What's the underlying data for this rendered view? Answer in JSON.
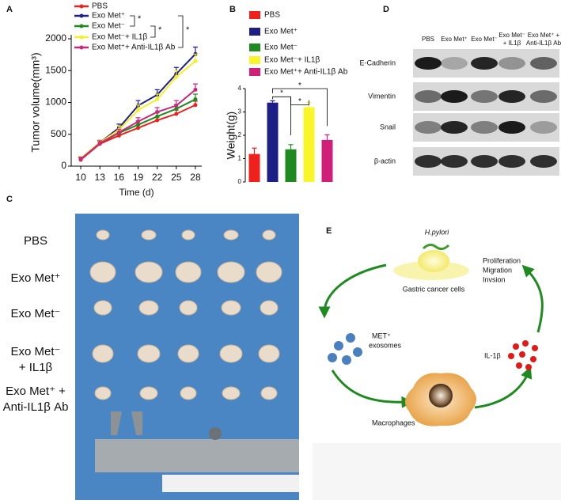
{
  "chart_data": [
    {
      "type": "line",
      "panel": "A",
      "x_label": "Time (d)",
      "y_label": "Tumor volume(mm³)",
      "x": [
        10,
        13,
        16,
        19,
        22,
        25,
        28
      ],
      "xlim": [
        8.5,
        29
      ],
      "xticks": [
        10,
        13,
        16,
        19,
        22,
        25,
        28
      ],
      "ylim": [
        0,
        2000
      ],
      "yticks": [
        0,
        500,
        1000,
        1500,
        2000
      ],
      "series": [
        {
          "name": "PBS",
          "color": "#e8231f",
          "values": [
            100,
            350,
            480,
            600,
            720,
            820,
            960
          ],
          "errors": [
            30,
            40,
            40,
            50,
            50,
            60,
            60
          ]
        },
        {
          "name": "Exo Met⁺",
          "color": "#1c1f86",
          "values": [
            120,
            370,
            600,
            950,
            1120,
            1450,
            1760
          ],
          "errors": [
            30,
            40,
            60,
            80,
            80,
            100,
            110
          ]
        },
        {
          "name": "Exo Met⁻",
          "color": "#1f8a1f",
          "values": [
            110,
            360,
            520,
            650,
            780,
            900,
            1050
          ],
          "errors": [
            30,
            40,
            50,
            60,
            60,
            70,
            80
          ]
        },
        {
          "name": "Exo Met⁻+ IL1β",
          "color": "#f5ee2a",
          "values": [
            120,
            370,
            570,
            880,
            1050,
            1400,
            1650
          ],
          "errors": [
            30,
            40,
            60,
            80,
            80,
            100,
            110
          ]
        },
        {
          "name": "Exo Met⁺+ Anti-IL1β Ab",
          "color": "#c8287a",
          "values": [
            110,
            360,
            530,
            700,
            850,
            950,
            1200
          ],
          "errors": [
            30,
            40,
            50,
            60,
            70,
            80,
            90
          ]
        }
      ],
      "annotations": [
        "*",
        "*",
        "*"
      ]
    },
    {
      "type": "bar",
      "panel": "B",
      "y_label": "Weight(g)",
      "categories": [
        "PBS",
        "Exo Met⁺",
        "Exo Met⁻",
        "Exo Met⁻+ IL1β",
        "Exo Met⁺+ Anti-IL1β Ab"
      ],
      "values": [
        1.2,
        3.4,
        1.4,
        3.2,
        1.8
      ],
      "errors": [
        0.25,
        0.08,
        0.2,
        0.2,
        0.22
      ],
      "colors": [
        "#f0211d",
        "#1c1f86",
        "#1f8a1f",
        "#f8f52b",
        "#d01f78"
      ],
      "ylim": [
        0,
        4
      ],
      "yticks": [
        0,
        1,
        2,
        3,
        4
      ],
      "annotations": [
        "*",
        "*",
        "*"
      ]
    }
  ],
  "panel_c": {
    "letter": "C",
    "labels": [
      [
        "PBS"
      ],
      [
        "Exo Met⁺"
      ],
      [
        "Exo Met⁻"
      ],
      [
        "Exo Met⁻",
        "+ IL1β"
      ],
      [
        "Exo Met⁺ +",
        "Anti-IL1β Ab"
      ]
    ]
  },
  "panel_d": {
    "letter": "D",
    "columns": [
      [
        "PBS"
      ],
      [
        "Exo Met⁺"
      ],
      [
        "Exo Met⁻"
      ],
      [
        "Exo Met⁻",
        "+ IL1β"
      ],
      [
        "Exo Met⁺ +",
        "Anti-IL1β Ab"
      ]
    ],
    "rows": [
      "E-Cadherin",
      "Vimentin",
      "Snail",
      "β-actin"
    ]
  },
  "panel_e": {
    "letter": "E",
    "bacterium": "H.pylori",
    "cell": "Gastric cancer cells",
    "effects": [
      "Proliferation",
      "Migration",
      "Invsion"
    ],
    "exosomes": [
      "MET⁺",
      "exosomes"
    ],
    "cytokine": "IL-1β",
    "macrophage": "Macrophages"
  }
}
